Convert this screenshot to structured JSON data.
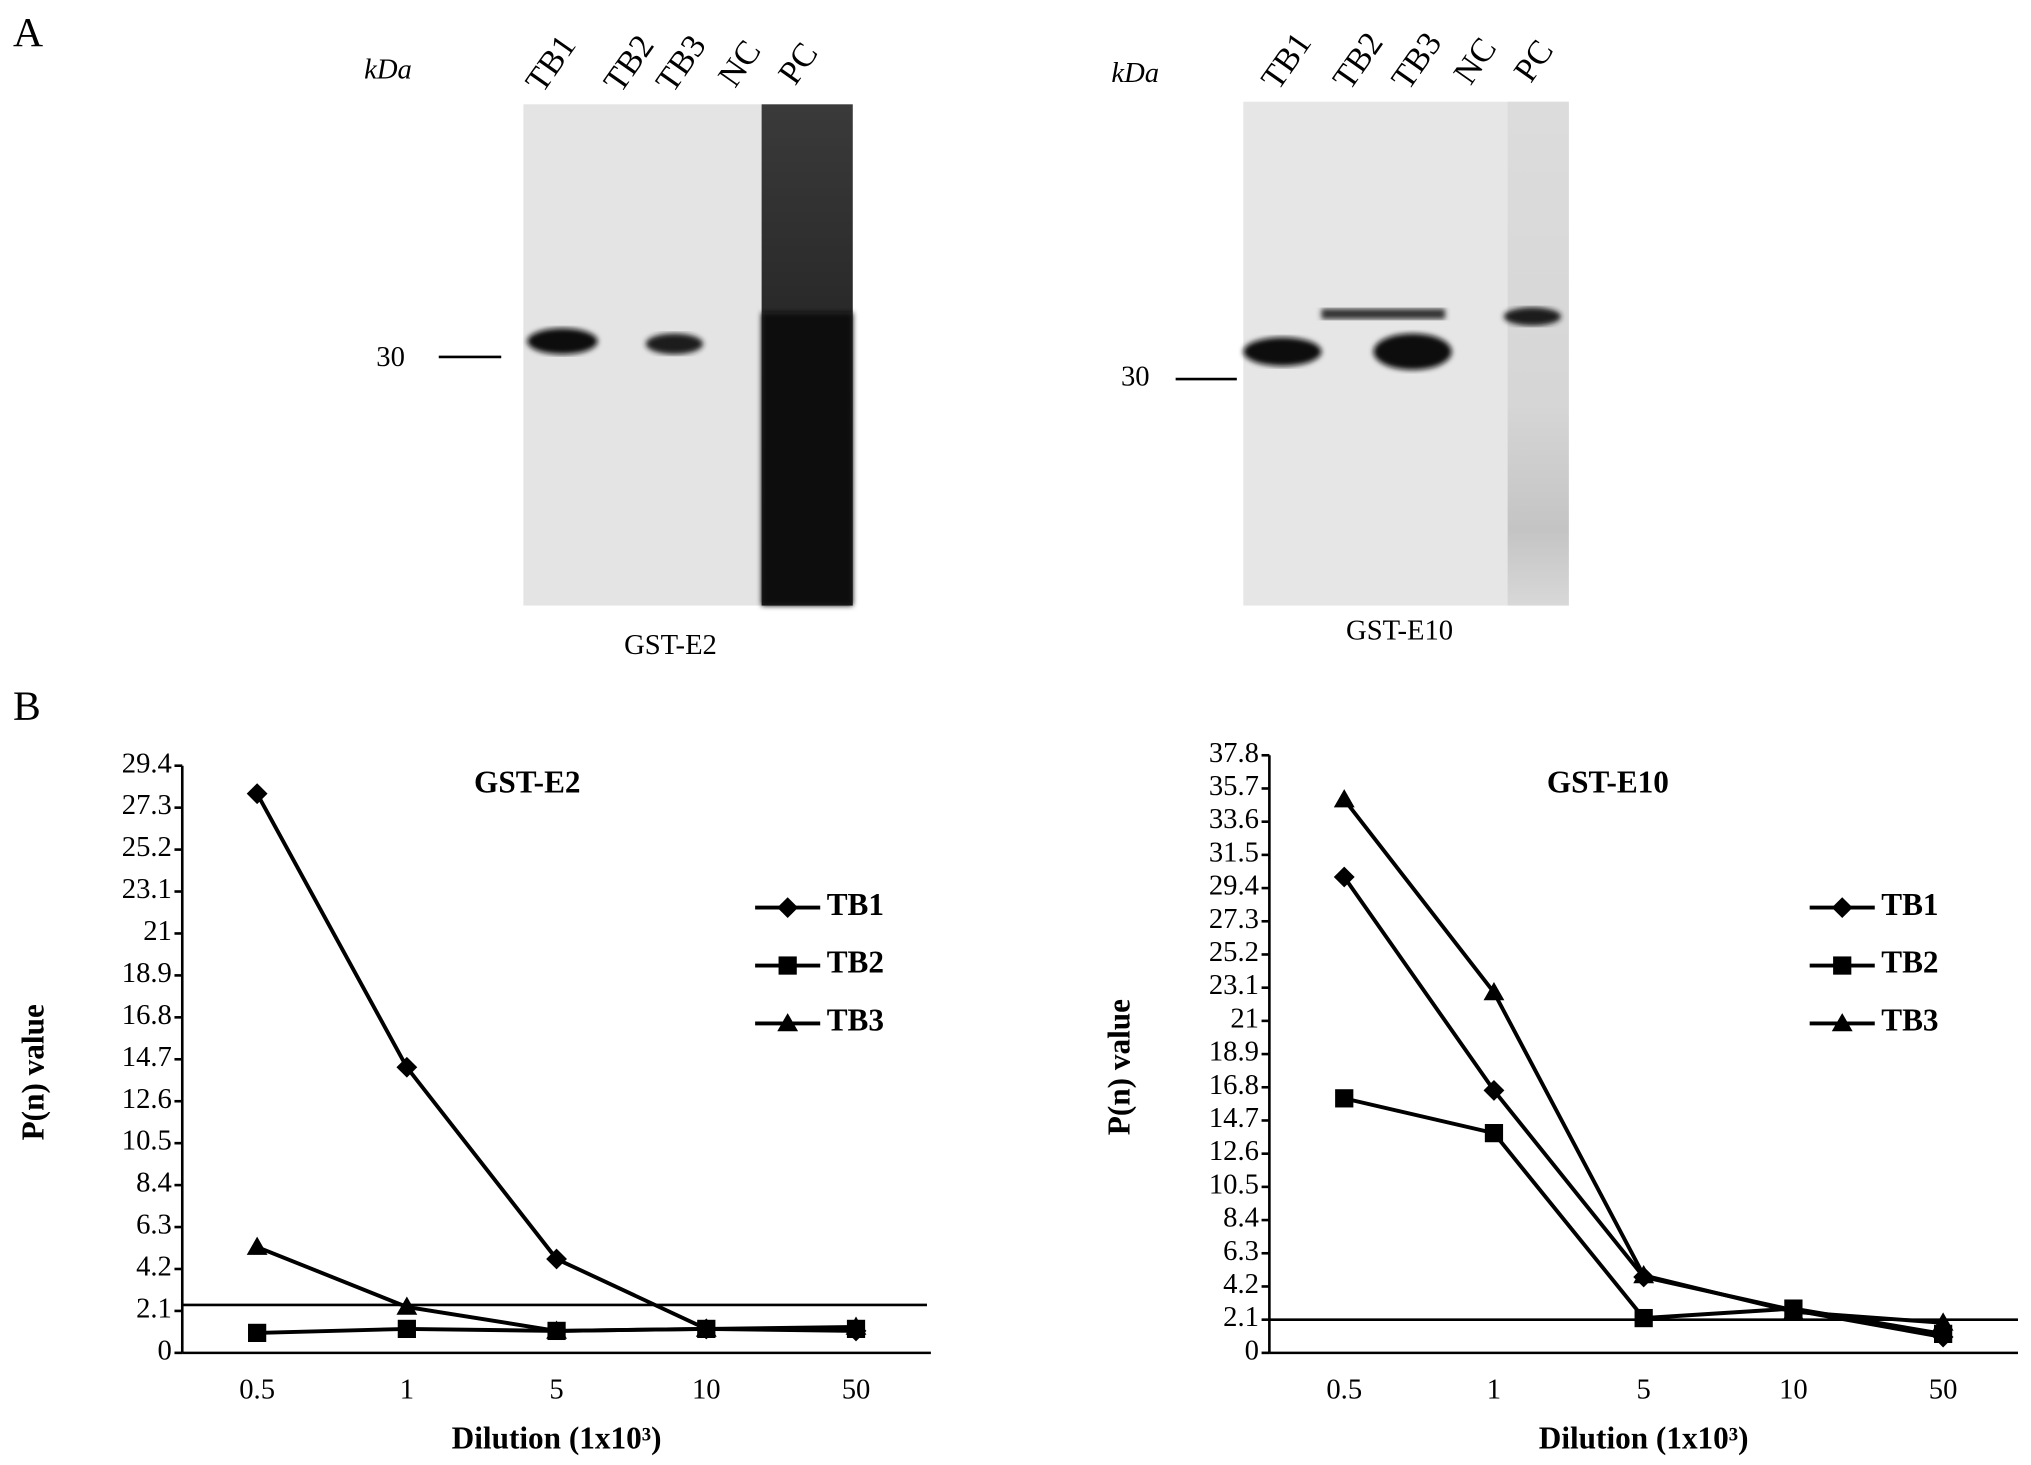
{
  "panels": {
    "a_label": "A",
    "b_label": "B"
  },
  "blots": [
    {
      "unit": "kDa",
      "lanes": [
        "TB1",
        "TB2",
        "TB3",
        "NC",
        "PC"
      ],
      "marker": 30,
      "caption": "GST-E2"
    },
    {
      "unit": "kDa",
      "lanes": [
        "TB1",
        "TB2",
        "TB3",
        "NC",
        "PC"
      ],
      "marker": 30,
      "caption": "GST-E10"
    }
  ],
  "chart_data": [
    {
      "type": "line",
      "title": "GST-E2",
      "xlabel": "Dilution (1x10³)",
      "ylabel": "P(n) value",
      "categories": [
        "0.5",
        "1",
        "5",
        "10",
        "50"
      ],
      "ylim": [
        0,
        29.4
      ],
      "yticks": [
        0,
        2.1,
        4.2,
        6.3,
        8.4,
        10.5,
        12.6,
        14.7,
        16.8,
        18.9,
        21,
        23.1,
        25.2,
        27.3,
        29.4
      ],
      "threshold": 2.4,
      "grid": false,
      "series": [
        {
          "name": "TB1",
          "color": "#000000",
          "marker": "diamond",
          "values": [
            28.0,
            14.3,
            4.7,
            1.2,
            1.1
          ]
        },
        {
          "name": "TB2",
          "color": "#000000",
          "marker": "square",
          "values": [
            1.0,
            1.2,
            1.1,
            1.2,
            1.2
          ]
        },
        {
          "name": "TB3",
          "color": "#000000",
          "marker": "triangle",
          "values": [
            5.3,
            2.3,
            1.1,
            1.2,
            1.3
          ]
        }
      ]
    },
    {
      "type": "line",
      "title": "GST-E10",
      "xlabel": "Dilution (1x10³)",
      "ylabel": "P(n) value",
      "categories": [
        "0.5",
        "1",
        "5",
        "10",
        "50"
      ],
      "ylim": [
        0,
        37.8
      ],
      "yticks": [
        0,
        2.1,
        4.2,
        6.3,
        8.4,
        10.5,
        12.6,
        14.7,
        16.8,
        18.9,
        21,
        23.1,
        25.2,
        27.3,
        29.4,
        31.5,
        33.6,
        35.7,
        37.8
      ],
      "threshold": 2.1,
      "grid": false,
      "series": [
        {
          "name": "TB1",
          "color": "#000000",
          "marker": "diamond",
          "values": [
            30.1,
            16.6,
            4.8,
            2.7,
            1.0
          ]
        },
        {
          "name": "TB2",
          "color": "#000000",
          "marker": "square",
          "values": [
            16.1,
            13.9,
            2.2,
            2.8,
            1.2
          ]
        },
        {
          "name": "TB3",
          "color": "#000000",
          "marker": "triangle",
          "values": [
            35.0,
            22.8,
            4.9,
            2.6,
            1.9
          ]
        }
      ]
    }
  ]
}
